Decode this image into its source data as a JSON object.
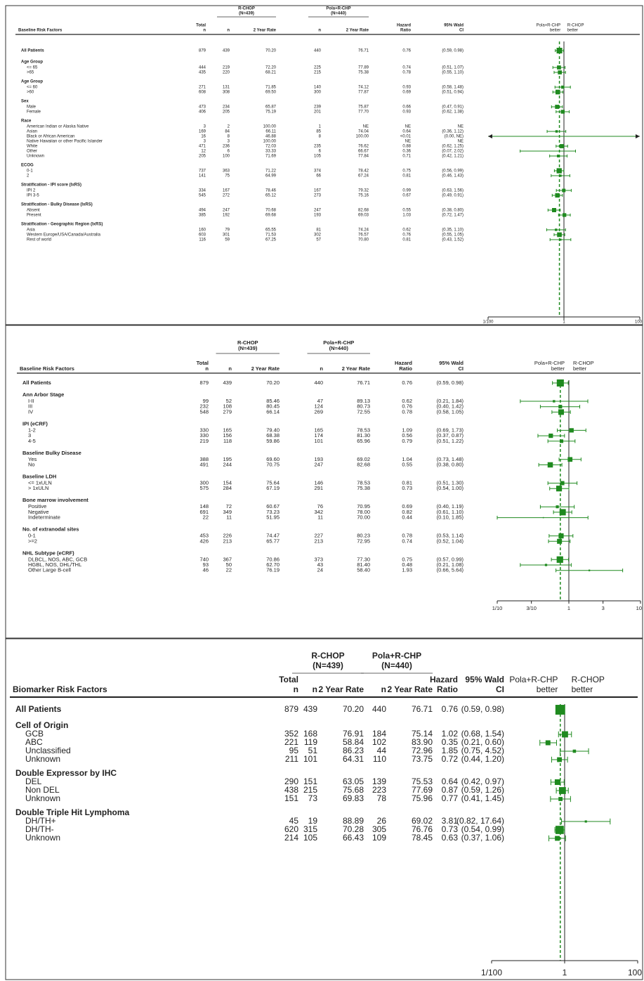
{
  "chart_data": [
    {
      "type": "forest",
      "row_header": "Baseline Risk Factors",
      "arms": [
        [
          "R-CHOP",
          "(N=439)"
        ],
        [
          "Pola+R-CHP",
          "(N=440)"
        ]
      ],
      "column_headers": [
        [
          "Total",
          "n"
        ],
        [
          "n"
        ],
        [
          "2 Year Rate"
        ],
        [
          "n"
        ],
        [
          "2 Year Rate"
        ],
        [
          "Hazard",
          "Ratio"
        ],
        [
          "95% Wald",
          "CI"
        ]
      ],
      "favors": [
        [
          "Pola+R-CHP",
          "better"
        ],
        [
          "R-CHOP",
          "better"
        ]
      ],
      "labels": [
        "All Patients",
        "Age Group",
        "<= 65",
        ">65",
        "Age Group",
        "<= 60",
        ">60",
        "Sex",
        "Male",
        "Female",
        "Race",
        "American Indian or Alaska Native",
        "Asian",
        "Black or African American",
        "Native Hawaiian or other Pacific Islander",
        "White",
        "Other",
        "Unknown",
        "ECOG",
        "0-1",
        "2",
        "Stratification - IPI score (IxRS)",
        "IPI 2",
        "IPI 3-5",
        "Stratification - Bulky Disease (IxRS)",
        "Absent",
        "Present",
        "Stratification - Geographic Region (IxRS)",
        "Asia",
        "Western Europe/USA/Canada/Australia",
        "Rest of world"
      ],
      "total": [
        879,
        null,
        444,
        435,
        null,
        271,
        608,
        null,
        473,
        406,
        null,
        3,
        169,
        16,
        3,
        471,
        12,
        205,
        null,
        737,
        141,
        null,
        334,
        545,
        null,
        494,
        385,
        null,
        160,
        603,
        116
      ],
      "n1": [
        439,
        null,
        219,
        220,
        null,
        131,
        308,
        null,
        234,
        205,
        null,
        2,
        84,
        8,
        3,
        236,
        6,
        100,
        null,
        363,
        75,
        null,
        167,
        272,
        null,
        247,
        192,
        null,
        79,
        301,
        59
      ],
      "rate1": [
        "70.20",
        null,
        "72.20",
        "68.21",
        null,
        "71.85",
        "69.50",
        null,
        "65.87",
        "75.19",
        null,
        "100.00",
        "66.11",
        "46.88",
        "100.00",
        "72.03",
        "33.33",
        "71.69",
        null,
        "71.22",
        "64.99",
        null,
        "78.46",
        "65.12",
        null,
        "70.68",
        "69.68",
        null,
        "65.55",
        "71.53",
        "67.25"
      ],
      "n2": [
        440,
        null,
        225,
        215,
        null,
        140,
        300,
        null,
        239,
        201,
        null,
        1,
        85,
        8,
        null,
        235,
        6,
        105,
        null,
        374,
        66,
        null,
        167,
        273,
        null,
        247,
        193,
        null,
        81,
        302,
        57
      ],
      "rate2": [
        "76.71",
        null,
        "77.89",
        "75.38",
        null,
        "74.12",
        "77.87",
        null,
        "75.87",
        "77.70",
        null,
        "NE",
        "74.04",
        "100.00",
        null,
        "76.62",
        "66.67",
        "77.84",
        null,
        "78.42",
        "67.24",
        null,
        "79.32",
        "75.16",
        null,
        "82.68",
        "69.03",
        null,
        "74.24",
        "76.57",
        "70.80"
      ],
      "values": [
        0.76,
        null,
        0.74,
        0.78,
        null,
        0.93,
        0.69,
        null,
        0.66,
        0.93,
        null,
        null,
        0.64,
        null,
        null,
        0.88,
        0.36,
        0.71,
        null,
        0.75,
        0.81,
        null,
        0.99,
        0.67,
        null,
        0.55,
        1.03,
        null,
        0.62,
        0.76,
        0.81
      ],
      "value_labels": [
        "0.76",
        null,
        "0.74",
        "0.78",
        null,
        "0.93",
        "0.69",
        null,
        "0.66",
        "0.93",
        null,
        "NE",
        "0.64",
        "<0.01",
        "NE",
        "0.88",
        "0.36",
        "0.71",
        null,
        "0.75",
        "0.81",
        null,
        "0.99",
        "0.67",
        null,
        "0.55",
        "1.03",
        null,
        "0.62",
        "0.76",
        "0.81"
      ],
      "ci_low": [
        0.59,
        null,
        0.51,
        0.55,
        null,
        0.58,
        0.51,
        null,
        0.47,
        0.62,
        null,
        null,
        0.36,
        0,
        null,
        0.62,
        0.07,
        0.42,
        null,
        0.56,
        0.46,
        null,
        0.63,
        0.49,
        null,
        0.38,
        0.72,
        null,
        0.35,
        0.55,
        0.43
      ],
      "ci_high": [
        0.98,
        null,
        1.07,
        1.1,
        null,
        1.48,
        0.94,
        null,
        0.91,
        1.38,
        null,
        null,
        1.12,
        null,
        null,
        1.25,
        2.02,
        1.21,
        null,
        0.99,
        1.43,
        null,
        1.56,
        0.91,
        null,
        0.8,
        1.47,
        null,
        1.1,
        1.05,
        1.52
      ],
      "ci_labels": [
        "(0.59, 0.98)",
        null,
        "(0.51, 1.07)",
        "(0.55, 1.10)",
        null,
        "(0.58, 1.48)",
        "(0.51, 0.94)",
        null,
        "(0.47, 0.91)",
        "(0.62, 1.38)",
        null,
        "NE",
        "(0.36, 1.12)",
        "(0.00, NE)",
        "NE",
        "(0.62, 1.25)",
        "(0.07, 2.02)",
        "(0.42, 1.21)",
        null,
        "(0.56, 0.99)",
        "(0.46, 1.43)",
        null,
        "(0.63, 1.56)",
        "(0.49, 0.91)",
        null,
        "(0.38, 0.80)",
        "(0.72, 1.47)",
        null,
        "(0.35, 1.10)",
        "(0.55, 1.05)",
        "(0.43, 1.52)"
      ],
      "log_x": true,
      "xlim": [
        0.01,
        100
      ],
      "xticks": [
        {
          "value": 0.01,
          "label": "1/100"
        },
        1,
        100
      ],
      "color": "#1f8a1f"
    },
    {
      "type": "forest",
      "row_header": "Baseline Risk Factors",
      "arms": [
        [
          "R-CHOP",
          "(N=439)"
        ],
        [
          "Pola+R-CHP",
          "(N=440)"
        ]
      ],
      "column_headers": [
        [
          "Total",
          "n"
        ],
        [
          "n"
        ],
        [
          "2 Year Rate"
        ],
        [
          "n"
        ],
        [
          "2 Year Rate"
        ],
        [
          "Hazard",
          "Ratio"
        ],
        [
          "95% Wald",
          "CI"
        ]
      ],
      "favors": [
        [
          "Pola+R-CHP",
          "better"
        ],
        [
          "R-CHOP",
          "better"
        ]
      ],
      "labels": [
        "All Patients",
        "Ann Arbor Stage",
        "I-II",
        "III",
        "IV",
        "IPI (eCRF)",
        "1-2",
        "3",
        "4-5",
        "Baseline Bulky Disease",
        "Yes",
        "No",
        "Baseline LDH",
        "<= 1xULN",
        "> 1xULN",
        "Bone marrow involvement",
        "Positive",
        "Negative",
        "Indeterminate",
        "No. of extranodal sites",
        "0-1",
        ">=2",
        "NHL Subtype (eCRF)",
        "DLBCL, NOS, ABC, GCB",
        "HGBL, NOS, DHL/THL",
        "Other Large B-cell"
      ],
      "total": [
        879,
        null,
        99,
        232,
        548,
        null,
        330,
        330,
        219,
        null,
        388,
        491,
        null,
        300,
        575,
        null,
        148,
        691,
        22,
        null,
        453,
        426,
        null,
        740,
        93,
        46
      ],
      "n1": [
        439,
        null,
        52,
        108,
        279,
        null,
        165,
        156,
        118,
        null,
        195,
        244,
        null,
        154,
        284,
        null,
        72,
        349,
        11,
        null,
        226,
        213,
        null,
        367,
        50,
        22
      ],
      "rate1": [
        "70.20",
        null,
        "85.46",
        "80.45",
        "66.14",
        null,
        "79.40",
        "68.38",
        "59.86",
        null,
        "69.60",
        "70.75",
        null,
        "75.64",
        "67.19",
        null,
        "60.67",
        "73.23",
        "51.95",
        null,
        "74.47",
        "65.77",
        null,
        "70.86",
        "62.70",
        "76.19"
      ],
      "n2": [
        440,
        null,
        47,
        124,
        269,
        null,
        165,
        174,
        101,
        null,
        193,
        247,
        null,
        146,
        291,
        null,
        76,
        342,
        11,
        null,
        227,
        213,
        null,
        373,
        43,
        24
      ],
      "rate2": [
        "76.71",
        null,
        "89.13",
        "80.73",
        "72.55",
        null,
        "78.53",
        "81.30",
        "65.96",
        null,
        "69.02",
        "82.68",
        null,
        "78.53",
        "75.38",
        null,
        "70.95",
        "78.00",
        "70.00",
        null,
        "80.23",
        "72.95",
        null,
        "77.30",
        "81.40",
        "58.40"
      ],
      "values": [
        0.76,
        null,
        0.62,
        0.76,
        0.78,
        null,
        1.09,
        0.56,
        0.79,
        null,
        1.04,
        0.55,
        null,
        0.81,
        0.73,
        null,
        0.69,
        0.82,
        0.44,
        null,
        0.78,
        0.74,
        null,
        0.75,
        0.48,
        1.93
      ],
      "value_labels": [
        "0.76",
        null,
        "0.62",
        "0.76",
        "0.78",
        null,
        "1.09",
        "0.56",
        "0.79",
        null,
        "1.04",
        "0.55",
        null,
        "0.81",
        "0.73",
        null,
        "0.69",
        "0.82",
        "0.44",
        null,
        "0.78",
        "0.74",
        null,
        "0.75",
        "0.48",
        "1.93"
      ],
      "ci_low": [
        0.59,
        null,
        0.21,
        0.4,
        0.58,
        null,
        0.69,
        0.37,
        0.51,
        null,
        0.73,
        0.38,
        null,
        0.51,
        0.54,
        null,
        0.4,
        0.61,
        0.1,
        null,
        0.53,
        0.52,
        null,
        0.57,
        0.21,
        0.66
      ],
      "ci_high": [
        0.98,
        null,
        1.84,
        1.42,
        1.05,
        null,
        1.73,
        0.87,
        1.22,
        null,
        1.48,
        0.8,
        null,
        1.3,
        1.0,
        null,
        1.19,
        1.1,
        1.85,
        null,
        1.14,
        1.04,
        null,
        0.99,
        1.08,
        5.64
      ],
      "ci_labels": [
        "(0.59, 0.98)",
        null,
        "(0.21, 1.84)",
        "(0.40, 1.42)",
        "(0.58, 1.05)",
        null,
        "(0.69, 1.73)",
        "(0.37, 0.87)",
        "(0.51, 1.22)",
        null,
        "(0.73, 1.48)",
        "(0.38, 0.80)",
        null,
        "(0.51, 1.30)",
        "(0.54, 1.00)",
        null,
        "(0.40, 1.19)",
        "(0.61, 1.10)",
        "(0.10, 1.85)",
        null,
        "(0.53, 1.14)",
        "(0.52, 1.04)",
        null,
        "(0.57, 0.99)",
        "(0.21, 1.08)",
        "(0.66, 5.64)"
      ],
      "log_x": true,
      "xlim": [
        0.1,
        10
      ],
      "xticks": [
        {
          "value": 0.1,
          "label": "1/10"
        },
        {
          "value": 0.3,
          "label": "3/10"
        },
        1,
        3,
        10
      ],
      "color": "#1f8a1f"
    },
    {
      "type": "forest",
      "row_header": "Biomarker Risk Factors",
      "arms": [
        [
          "R-CHOP",
          "(N=439)"
        ],
        [
          "Pola+R-CHP",
          "(N=440)"
        ]
      ],
      "column_headers": [
        [
          "Total",
          "n"
        ],
        [
          "n"
        ],
        [
          "2 Year Rate"
        ],
        [
          "n"
        ],
        [
          "2 Year Rate"
        ],
        [
          "Hazard",
          "Ratio"
        ],
        [
          "95% Wald",
          "CI"
        ]
      ],
      "favors": [
        [
          "Pola+R-CHP",
          "better"
        ],
        [
          "R-CHOP",
          "better"
        ]
      ],
      "labels": [
        "All Patients",
        "Cell of Origin",
        "GCB",
        "ABC",
        "Unclassified",
        "Unknown",
        "Double Expressor by IHC",
        "DEL",
        "Non DEL",
        "Unknown",
        "Double Triple Hit Lymphoma",
        "DH/TH+",
        "DH/TH-",
        "Unknown"
      ],
      "total": [
        879,
        null,
        352,
        221,
        95,
        211,
        null,
        290,
        438,
        151,
        null,
        45,
        620,
        214
      ],
      "n1": [
        439,
        null,
        168,
        119,
        51,
        101,
        null,
        151,
        215,
        73,
        null,
        19,
        315,
        105
      ],
      "rate1": [
        "70.20",
        null,
        "76.91",
        "58.84",
        "86.23",
        "64.31",
        null,
        "63.05",
        "75.68",
        "69.83",
        null,
        "88.89",
        "70.28",
        "66.43"
      ],
      "n2": [
        440,
        null,
        184,
        102,
        44,
        110,
        null,
        139,
        223,
        78,
        null,
        26,
        305,
        109
      ],
      "rate2": [
        "76.71",
        null,
        "75.14",
        "83.90",
        "72.96",
        "73.75",
        null,
        "75.53",
        "77.69",
        "75.96",
        null,
        "69.02",
        "76.76",
        "78.45"
      ],
      "values": [
        0.76,
        null,
        1.02,
        0.35,
        1.85,
        0.72,
        null,
        0.64,
        0.87,
        0.77,
        null,
        3.81,
        0.73,
        0.63
      ],
      "value_labels": [
        "0.76",
        null,
        "1.02",
        "0.35",
        "1.85",
        "0.72",
        null,
        "0.64",
        "0.87",
        "0.77",
        null,
        "3.81",
        "0.73",
        "0.63"
      ],
      "ci_low": [
        0.59,
        null,
        0.68,
        0.21,
        0.75,
        0.44,
        null,
        0.42,
        0.59,
        0.41,
        null,
        0.82,
        0.54,
        0.37
      ],
      "ci_high": [
        0.98,
        null,
        1.54,
        0.6,
        4.52,
        1.2,
        null,
        0.97,
        1.26,
        1.45,
        null,
        17.64,
        0.99,
        1.06
      ],
      "ci_labels": [
        "(0.59, 0.98)",
        null,
        "(0.68, 1.54)",
        "(0.21, 0.60)",
        "(0.75, 4.52)",
        "(0.44, 1.20)",
        null,
        "(0.42, 0.97)",
        "(0.59, 1.26)",
        "(0.41, 1.45)",
        null,
        "(0.82, 17.64)",
        "(0.54, 0.99)",
        "(0.37, 1.06)"
      ],
      "log_x": true,
      "xlim": [
        0.01,
        100
      ],
      "xticks": [
        {
          "value": 0.01,
          "label": "1/100"
        },
        1,
        100
      ],
      "color": "#1f8a1f"
    }
  ]
}
